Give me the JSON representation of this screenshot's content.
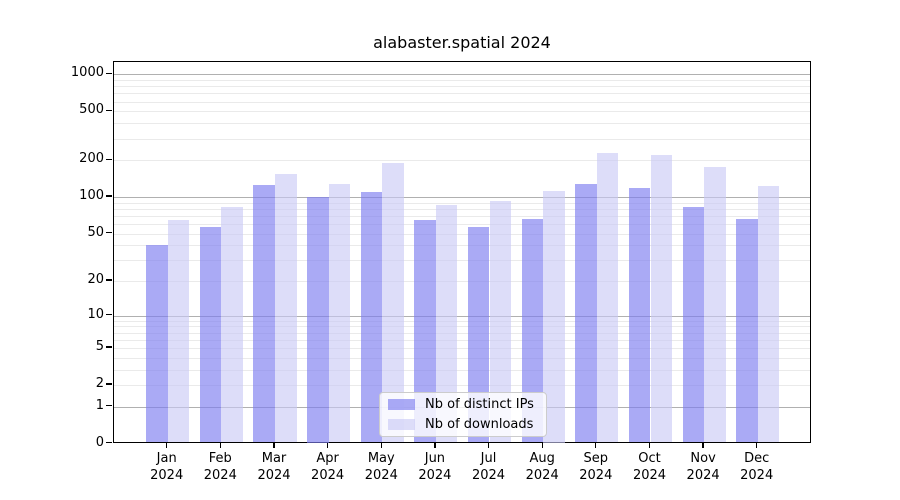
{
  "title": "alabaster.spatial 2024",
  "legend": {
    "items": [
      {
        "label": "Nb of distinct IPs",
        "color": "rgba(124,124,240,0.65)"
      },
      {
        "label": "Nb of downloads",
        "color": "rgba(200,200,245,0.62)"
      }
    ]
  },
  "colors": {
    "bar_distinct_ips": "rgba(124,124,240,0.65)",
    "bar_downloads": "rgba(200,200,245,0.62)",
    "grid_major": "#b0b0b0",
    "grid_minor": "#eaeaea",
    "axis": "#000000"
  },
  "chart_data": {
    "type": "bar",
    "title": "alabaster.spatial 2024",
    "categories": [
      "Jan 2024",
      "Feb 2024",
      "Mar 2024",
      "Apr 2024",
      "May 2024",
      "Jun 2024",
      "Jul 2024",
      "Aug 2024",
      "Sep 2024",
      "Oct 2024",
      "Nov 2024",
      "Dec 2024"
    ],
    "series": [
      {
        "name": "Nb of distinct IPs",
        "values": [
          40,
          57,
          125,
          100,
          109,
          65,
          57,
          66,
          127,
          118,
          83,
          66
        ]
      },
      {
        "name": "Nb of downloads",
        "values": [
          65,
          83,
          155,
          128,
          190,
          86,
          93,
          113,
          230,
          222,
          177,
          124
        ]
      }
    ],
    "yscale": "log1p",
    "yticks": [
      0,
      1,
      2,
      5,
      10,
      20,
      50,
      100,
      200,
      500,
      1000
    ],
    "ylim": [
      0,
      1270
    ],
    "xlabel": "",
    "ylabel": "",
    "grid": true,
    "legend_position": "lower center"
  }
}
